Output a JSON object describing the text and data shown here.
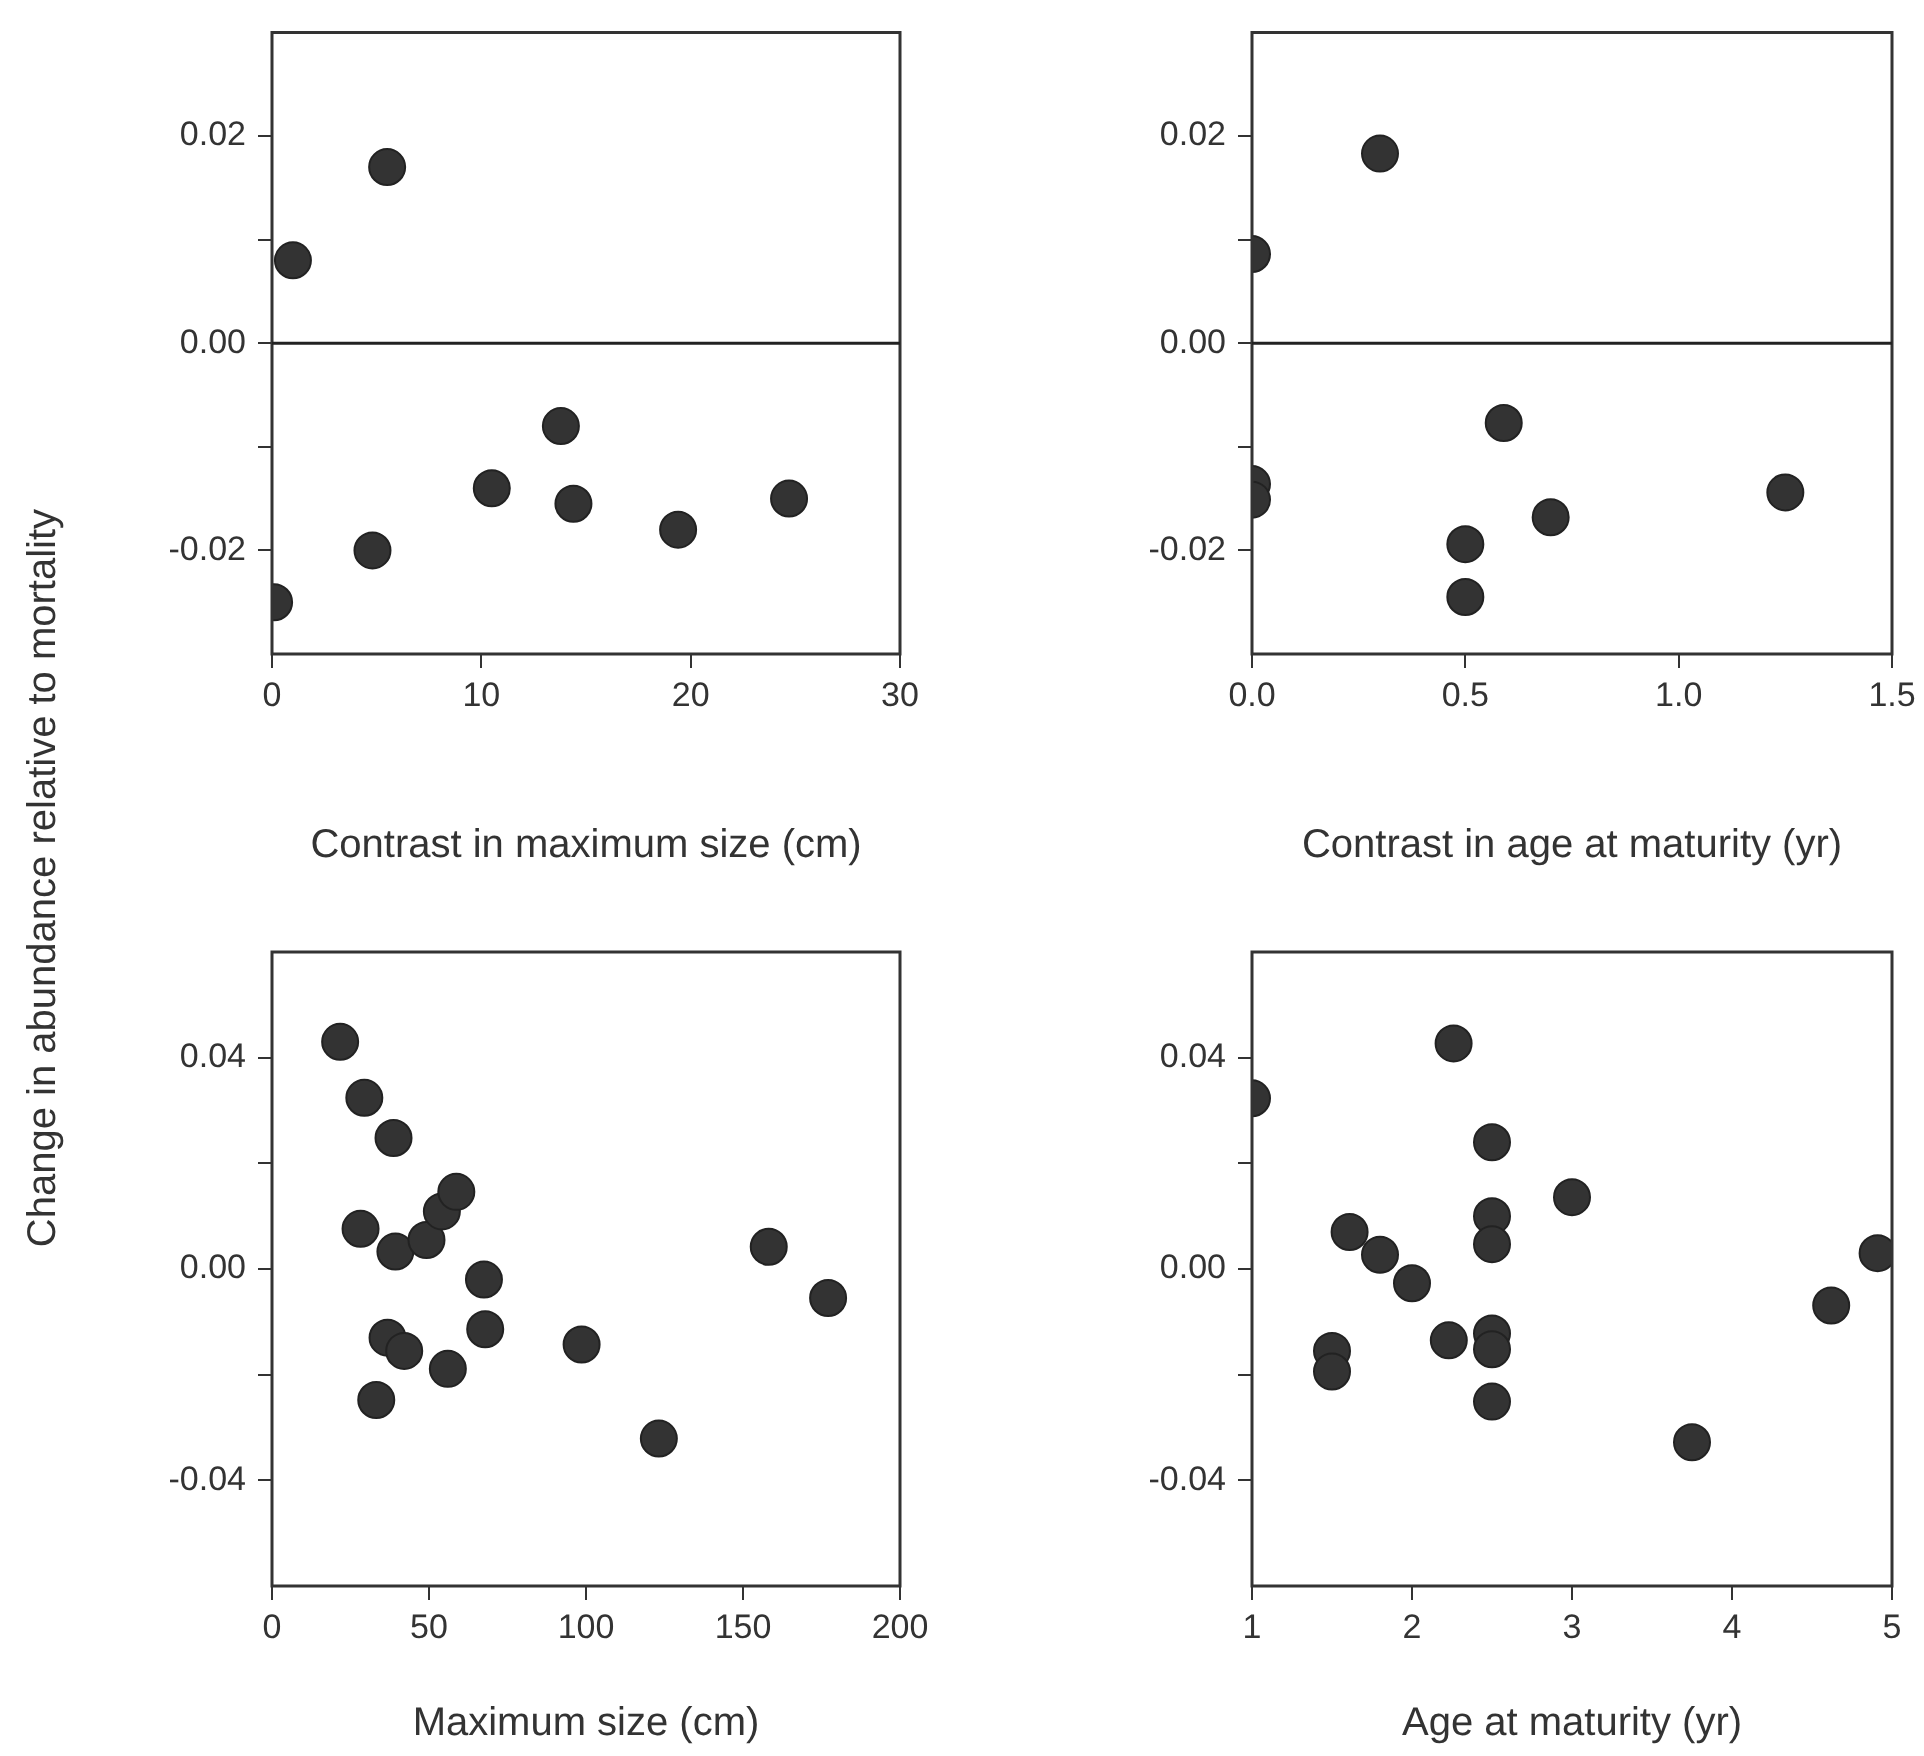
{
  "chart_data": [
    {
      "type": "scatter",
      "xlabel": "Contrast in maximum size (cm)",
      "ylabel": "Change in abundance relative to mortality",
      "xlim": [
        0,
        30
      ],
      "xticks": [
        0,
        10,
        20,
        30
      ],
      "ylim": [
        -0.03,
        0.03
      ],
      "yticks": [
        {
          "value": -0.02,
          "label": "-0.02"
        },
        {
          "value": -0.01,
          "label": null
        },
        {
          "value": 0,
          "label": "0.00"
        },
        {
          "value": 0.01,
          "label": null
        },
        {
          "value": 0.02,
          "label": "0.02"
        }
      ],
      "grid": false,
      "legend": false,
      "marker": "circle",
      "ref_lines": [
        {
          "axis": "y",
          "value": 0
        }
      ],
      "series": [
        {
          "color": "#333333",
          "x": [
            1.0,
            5.5,
            0.1,
            4.8,
            10.5,
            13.8,
            14.4,
            19.4,
            24.7
          ],
          "values": [
            0.008,
            0.017,
            -0.025,
            -0.02,
            -0.014,
            -0.008,
            -0.0155,
            -0.018,
            -0.015
          ]
        }
      ]
    },
    {
      "type": "scatter",
      "xlabel": "Contrast in age at maturity (yr)",
      "xlim": [
        0,
        1.5
      ],
      "xticks": [
        {
          "value": 0,
          "label": "0.0"
        },
        0.5,
        {
          "value": 1,
          "label": "1.0"
        },
        1.5
      ],
      "ylim": [
        -0.03,
        0.03
      ],
      "yticks": [
        {
          "value": -0.02,
          "label": "-0.02"
        },
        {
          "value": -0.01,
          "label": null
        },
        {
          "value": 0,
          "label": "0.00"
        },
        {
          "value": 0.01,
          "label": null
        },
        {
          "value": 0.02,
          "label": "0.02"
        }
      ],
      "grid": false,
      "legend": false,
      "marker": "circle",
      "ref_lines": [
        {
          "axis": "y",
          "value": 0
        }
      ],
      "series": [
        {
          "color": "#333333",
          "x": [
            0,
            0.3,
            0,
            0,
            0.59,
            0.5,
            0.5,
            0.7,
            1.25
          ],
          "values": [
            0.0086,
            0.0183,
            -0.0136,
            -0.0151,
            -0.0077,
            -0.0194,
            -0.0245,
            -0.0168,
            -0.0144
          ]
        }
      ]
    },
    {
      "type": "scatter",
      "xlabel": "Maximum size (cm)",
      "xlim": [
        0,
        200
      ],
      "xticks": [
        0,
        50,
        100,
        150,
        200
      ],
      "ylim": [
        -0.06,
        0.06
      ],
      "yticks": [
        {
          "value": -0.04,
          "label": "-0.04"
        },
        {
          "value": -0.02,
          "label": null
        },
        {
          "value": 0,
          "label": "0.00"
        },
        {
          "value": 0.02,
          "label": null
        },
        {
          "value": 0.04,
          "label": "0.04"
        }
      ],
      "grid": false,
      "legend": false,
      "marker": "circle",
      "series": [
        {
          "color": "#333333",
          "x": [
            21.7,
            29.4,
            38.7,
            28.2,
            39.3,
            49.2,
            54.1,
            58.7,
            67.5,
            67.9,
            36.8,
            42.1,
            56,
            33.2,
            98.6,
            123.2,
            158.2,
            177.1
          ],
          "values": [
            0.043,
            0.0324,
            0.0248,
            0.0076,
            0.0033,
            0.0055,
            0.0109,
            0.0146,
            -0.002,
            -0.0114,
            -0.013,
            -0.0155,
            -0.0189,
            -0.0248,
            -0.0143,
            -0.0321,
            0.0042,
            -0.0055
          ]
        }
      ]
    },
    {
      "type": "scatter",
      "xlabel": "Age at maturity (yr)",
      "xlim": [
        1,
        5
      ],
      "xticks": [
        1,
        2,
        3,
        4,
        5
      ],
      "ylim": [
        -0.06,
        0.06
      ],
      "yticks": [
        {
          "value": -0.04,
          "label": "-0.04"
        },
        {
          "value": -0.02,
          "label": null
        },
        {
          "value": 0,
          "label": "0.00"
        },
        {
          "value": 0.02,
          "label": null
        },
        {
          "value": 0.04,
          "label": "0.04"
        }
      ],
      "grid": false,
      "legend": false,
      "marker": "circle",
      "series": [
        {
          "color": "#333333",
          "x": [
            1.0,
            2.26,
            2.5,
            3.0,
            2.5,
            2.5,
            1.61,
            1.8,
            2.0,
            1.5,
            1.5,
            2.23,
            2.5,
            2.5,
            2.5,
            3.75,
            4.62,
            4.91
          ],
          "values": [
            0.0323,
            0.0427,
            0.024,
            0.0136,
            0.01,
            0.0047,
            0.007,
            0.0027,
            -0.0027,
            -0.0155,
            -0.0194,
            -0.0135,
            -0.0122,
            -0.0152,
            -0.0251,
            -0.0328,
            -0.0069,
            0.003
          ]
        }
      ]
    }
  ]
}
